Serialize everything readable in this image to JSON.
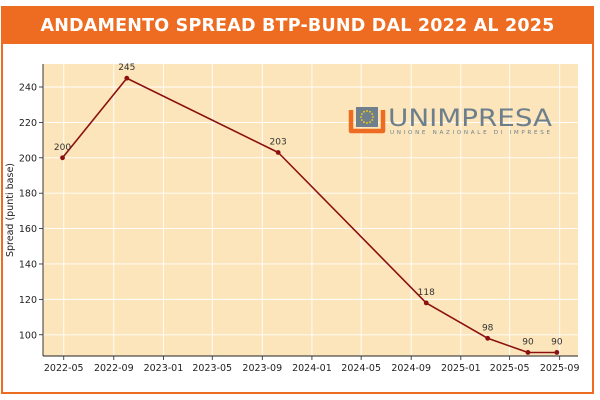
{
  "banner": {
    "title": "ANDAMENTO SPREAD BTP-BUND DAL 2022 AL 2025"
  },
  "logo": {
    "name": "UNIMPRESA",
    "subtitle": "UNIONE NAZIONALE DI IMPRESE",
    "icon": "unimpresa-logo-icon",
    "text_color": "#6d7f8c",
    "icon_color": "#ee6c22"
  },
  "colors": {
    "accent": "#ee6c22",
    "plot_background": "#fce5ba",
    "line": "#8b1010",
    "grid": "#ffffff"
  },
  "chart_data": {
    "type": "line",
    "title": "",
    "xlabel": "",
    "ylabel": "Spread (punti base)",
    "x_type": "date",
    "xlim": [
      "2022-03-11",
      "2025-10-16"
    ],
    "ylim": [
      88,
      253
    ],
    "x_ticks": [
      "2022-05",
      "2022-09",
      "2023-01",
      "2023-05",
      "2023-09",
      "2024-01",
      "2024-05",
      "2024-09",
      "2025-01",
      "2025-05",
      "2025-09"
    ],
    "y_ticks": [
      100,
      120,
      140,
      160,
      180,
      200,
      220,
      240
    ],
    "grid": true,
    "series": [
      {
        "x": [
          "2022-04-28",
          "2022-10-03",
          "2023-10-10",
          "2024-10-08",
          "2025-03-08",
          "2025-06-15",
          "2025-08-25"
        ],
        "y": [
          200,
          245,
          203,
          118,
          98,
          90,
          90
        ],
        "labels": [
          "200",
          "245",
          "203",
          "118",
          "98",
          "90",
          "90"
        ]
      }
    ]
  }
}
